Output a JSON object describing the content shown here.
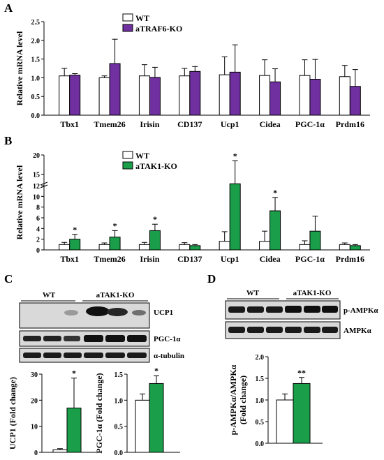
{
  "colors": {
    "wt": "#ffffff",
    "traf6": "#7030a0",
    "tak1": "#1a9e4a",
    "stroke": "#000000",
    "blot_bg": "#d8d8d8",
    "band": "#1a1a1a"
  },
  "panels": {
    "A": "A",
    "B": "B",
    "C": "C",
    "D": "D"
  },
  "chart_data": [
    {
      "id": "A",
      "type": "bar",
      "ylabel": "Relative mRNA level",
      "ylim": [
        0,
        2.5
      ],
      "yticks": [
        "0.0",
        "0.5",
        "1.0",
        "1.5",
        "2.0",
        "2.5"
      ],
      "categories": [
        "Tbx1",
        "Tmem26",
        "Irisin",
        "CD137",
        "Ucp1",
        "Cidea",
        "PGC-1α",
        "Prdm16"
      ],
      "legend": [
        "WT",
        "aTRAF6-KO"
      ],
      "series": [
        {
          "name": "WT",
          "values": [
            1.05,
            1.0,
            1.05,
            1.05,
            1.08,
            1.06,
            1.06,
            1.03
          ],
          "err": [
            0.2,
            0.05,
            0.3,
            0.2,
            0.48,
            0.42,
            0.42,
            0.3
          ]
        },
        {
          "name": "aTRAF6-KO",
          "values": [
            1.07,
            1.38,
            1.01,
            1.17,
            1.15,
            0.89,
            0.96,
            0.77
          ],
          "err": [
            0.04,
            0.65,
            0.27,
            0.13,
            0.73,
            0.35,
            0.53,
            0.45
          ]
        }
      ],
      "marks": []
    },
    {
      "id": "B",
      "type": "bar",
      "ylabel": "Relative mRNA level",
      "ylim": [
        0,
        20
      ],
      "yticks": [
        "0",
        "2",
        "4",
        "6",
        "8",
        "10",
        "12",
        "15",
        "20"
      ],
      "categories": [
        "Tbx1",
        "Tmem26",
        "Irisin",
        "CD137",
        "Ucp1",
        "Cidea",
        "PGC-1α",
        "Prdm16"
      ],
      "legend": [
        "WT",
        "aTAK1-KO"
      ],
      "series": [
        {
          "name": "WT",
          "values": [
            1.0,
            1.0,
            1.0,
            1.0,
            1.6,
            1.6,
            1.0,
            1.0
          ],
          "err": [
            0.4,
            0.3,
            0.4,
            0.35,
            1.8,
            1.9,
            0.7,
            0.3
          ]
        },
        {
          "name": "aTAK1-KO",
          "values": [
            2.0,
            2.4,
            3.6,
            0.8,
            12.5,
            7.3,
            3.5,
            0.8
          ],
          "err": [
            0.9,
            1.2,
            1.2,
            0.2,
            6.0,
            2.5,
            2.8,
            0.2
          ]
        }
      ],
      "marks": [
        "*",
        "*",
        "*",
        "",
        "*",
        "*",
        "",
        ""
      ]
    },
    {
      "id": "C1",
      "type": "bar",
      "ylabel": "UCP1 (Fold change)",
      "ylim": [
        0,
        30
      ],
      "yticks": [
        "0",
        "10",
        "20",
        "30"
      ],
      "categories": [
        "WT",
        "aTAK1-KO"
      ],
      "values": [
        1.0,
        17.0
      ],
      "err": [
        0.4,
        11.5
      ],
      "marks": [
        "",
        "*"
      ]
    },
    {
      "id": "C2",
      "type": "bar",
      "ylabel": "PGC-1α (Fold change)",
      "ylim": [
        0,
        1.5
      ],
      "yticks": [
        "0.0",
        "0.5",
        "1.0",
        "1.5"
      ],
      "categories": [
        "WT",
        "aTAK1-KO"
      ],
      "values": [
        1.0,
        1.32
      ],
      "err": [
        0.12,
        0.15
      ],
      "marks": [
        "",
        "*"
      ]
    },
    {
      "id": "D1",
      "type": "bar",
      "ylabel": "p-AMPKα/AMPKα (Fold change)",
      "ylim": [
        0,
        2.0
      ],
      "yticks": [
        "0.0",
        "0.5",
        "1.0",
        "1.5",
        "2.0"
      ],
      "categories": [
        "WT",
        "aTAK1-KO"
      ],
      "values": [
        1.0,
        1.38
      ],
      "err": [
        0.14,
        0.14
      ],
      "marks": [
        "",
        "**"
      ]
    }
  ],
  "blots": {
    "C": {
      "groups": [
        "WT",
        "aTAK1-KO"
      ],
      "rows": [
        "UCP1",
        "PGC-1α",
        "α-tubulin"
      ]
    },
    "D": {
      "groups": [
        "WT",
        "aTAK1-KO"
      ],
      "rows": [
        "p-AMPKα",
        "AMPKα"
      ]
    }
  }
}
